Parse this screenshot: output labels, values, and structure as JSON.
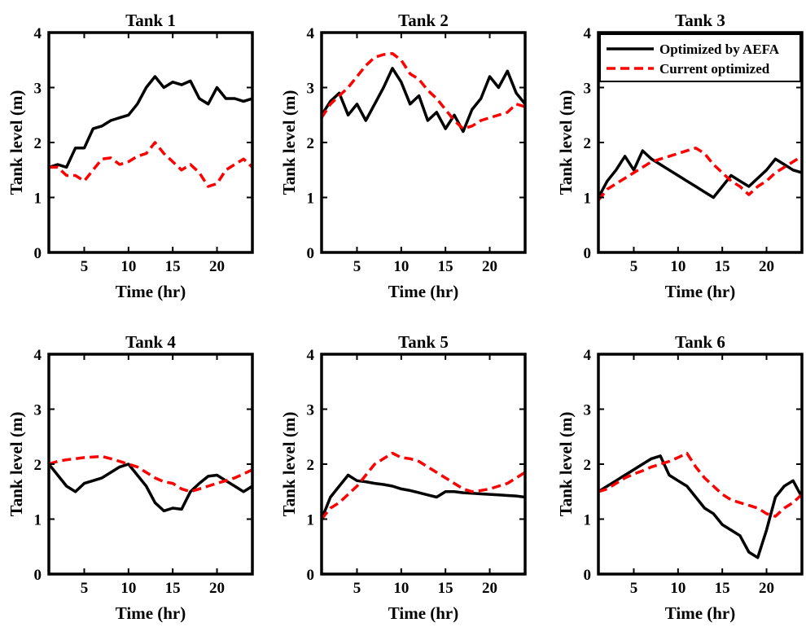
{
  "legend": {
    "location": "top-right of Tank 3",
    "entries": [
      {
        "label": "Optimized by AEFA",
        "color": "#000000",
        "style": "solid"
      },
      {
        "label": "Current optimized",
        "color": "#ff0000",
        "style": "dashed"
      }
    ]
  },
  "chart_data": [
    {
      "type": "line",
      "title": "Tank 1",
      "xlabel": "Time (hr)",
      "ylabel": "Tank level (m)",
      "xlim": [
        1,
        24
      ],
      "ylim": [
        0,
        4
      ],
      "xticks": [
        5,
        10,
        15,
        20
      ],
      "yticks": [
        0,
        1,
        2,
        3,
        4
      ],
      "series": [
        {
          "name": "Optimized by AEFA",
          "color": "#000000",
          "dashed": false,
          "x": [
            1,
            2,
            3,
            4,
            5,
            6,
            7,
            8,
            9,
            10,
            11,
            12,
            13,
            14,
            15,
            16,
            17,
            18,
            19,
            20,
            21,
            22,
            23,
            24
          ],
          "y": [
            1.55,
            1.6,
            1.55,
            1.9,
            1.9,
            2.25,
            2.3,
            2.4,
            2.45,
            2.5,
            2.7,
            3.0,
            3.2,
            3.0,
            3.1,
            3.05,
            3.12,
            2.8,
            2.7,
            3.0,
            2.8,
            2.8,
            2.75,
            2.8
          ]
        },
        {
          "name": "Current optimized",
          "color": "#ff0000",
          "dashed": true,
          "x": [
            1,
            2,
            3,
            4,
            5,
            6,
            7,
            8,
            9,
            10,
            11,
            12,
            13,
            14,
            15,
            16,
            17,
            18,
            19,
            20,
            21,
            22,
            23,
            24
          ],
          "y": [
            1.55,
            1.55,
            1.4,
            1.4,
            1.3,
            1.5,
            1.7,
            1.72,
            1.6,
            1.65,
            1.75,
            1.8,
            2.0,
            1.8,
            1.65,
            1.5,
            1.6,
            1.45,
            1.2,
            1.25,
            1.5,
            1.6,
            1.7,
            1.55
          ]
        }
      ]
    },
    {
      "type": "line",
      "title": "Tank 2",
      "xlabel": "Time (hr)",
      "ylabel": "Tank level (m)",
      "xlim": [
        1,
        24
      ],
      "ylim": [
        0,
        4
      ],
      "xticks": [
        5,
        10,
        15,
        20
      ],
      "yticks": [
        0,
        1,
        2,
        3,
        4
      ],
      "series": [
        {
          "name": "Optimized by AEFA",
          "color": "#000000",
          "dashed": false,
          "x": [
            1,
            2,
            3,
            4,
            5,
            6,
            7,
            8,
            9,
            10,
            11,
            12,
            13,
            14,
            15,
            16,
            17,
            18,
            19,
            20,
            21,
            22,
            23,
            24
          ],
          "y": [
            2.5,
            2.75,
            2.9,
            2.5,
            2.7,
            2.4,
            2.7,
            3.0,
            3.35,
            3.1,
            2.7,
            2.85,
            2.4,
            2.55,
            2.25,
            2.5,
            2.2,
            2.6,
            2.8,
            3.2,
            3.0,
            3.3,
            2.9,
            2.7
          ]
        },
        {
          "name": "Current optimized",
          "color": "#ff0000",
          "dashed": true,
          "x": [
            1,
            2,
            3,
            4,
            5,
            6,
            7,
            8,
            9,
            10,
            11,
            12,
            13,
            14,
            15,
            16,
            17,
            18,
            19,
            20,
            21,
            22,
            23,
            24
          ],
          "y": [
            2.45,
            2.7,
            2.85,
            3.0,
            3.2,
            3.4,
            3.55,
            3.6,
            3.62,
            3.5,
            3.25,
            3.15,
            2.95,
            2.8,
            2.6,
            2.4,
            2.25,
            2.3,
            2.4,
            2.45,
            2.5,
            2.55,
            2.7,
            2.65
          ]
        }
      ]
    },
    {
      "type": "line",
      "title": "Tank 3",
      "xlabel": "Time (hr)",
      "ylabel": "Tank level (m)",
      "xlim": [
        1,
        24
      ],
      "ylim": [
        0,
        4
      ],
      "xticks": [
        5,
        10,
        15,
        20
      ],
      "yticks": [
        0,
        1,
        2,
        3,
        4
      ],
      "series": [
        {
          "name": "Optimized by AEFA",
          "color": "#000000",
          "dashed": false,
          "x": [
            1,
            2,
            3,
            4,
            5,
            6,
            7,
            8,
            9,
            10,
            11,
            12,
            13,
            14,
            15,
            16,
            17,
            18,
            19,
            20,
            21,
            22,
            23,
            24
          ],
          "y": [
            1.0,
            1.3,
            1.5,
            1.75,
            1.5,
            1.85,
            1.7,
            1.6,
            1.5,
            1.4,
            1.3,
            1.2,
            1.1,
            1.0,
            1.2,
            1.4,
            1.3,
            1.2,
            1.35,
            1.5,
            1.7,
            1.6,
            1.5,
            1.45
          ]
        },
        {
          "name": "Current optimized",
          "color": "#ff0000",
          "dashed": true,
          "x": [
            1,
            2,
            3,
            4,
            5,
            6,
            7,
            8,
            9,
            10,
            11,
            12,
            13,
            14,
            15,
            16,
            17,
            18,
            19,
            20,
            21,
            22,
            23,
            24
          ],
          "y": [
            0.95,
            1.15,
            1.25,
            1.35,
            1.45,
            1.55,
            1.65,
            1.7,
            1.75,
            1.8,
            1.85,
            1.9,
            1.8,
            1.6,
            1.45,
            1.3,
            1.2,
            1.05,
            1.2,
            1.3,
            1.45,
            1.55,
            1.65,
            1.75
          ]
        }
      ]
    },
    {
      "type": "line",
      "title": "Tank 4",
      "xlabel": "Time (hr)",
      "ylabel": "Tank level (m)",
      "xlim": [
        1,
        24
      ],
      "ylim": [
        0,
        4
      ],
      "xticks": [
        5,
        10,
        15,
        20
      ],
      "yticks": [
        0,
        1,
        2,
        3,
        4
      ],
      "series": [
        {
          "name": "Optimized by AEFA",
          "color": "#000000",
          "dashed": false,
          "x": [
            1,
            2,
            3,
            4,
            5,
            6,
            7,
            8,
            9,
            10,
            11,
            12,
            13,
            14,
            15,
            16,
            17,
            18,
            19,
            20,
            21,
            22,
            23,
            24
          ],
          "y": [
            2.0,
            1.8,
            1.6,
            1.5,
            1.65,
            1.7,
            1.75,
            1.85,
            1.95,
            2.0,
            1.8,
            1.6,
            1.3,
            1.15,
            1.2,
            1.18,
            1.5,
            1.65,
            1.78,
            1.8,
            1.7,
            1.6,
            1.5,
            1.6
          ]
        },
        {
          "name": "Current optimized",
          "color": "#ff0000",
          "dashed": true,
          "x": [
            1,
            2,
            3,
            4,
            5,
            6,
            7,
            8,
            9,
            10,
            11,
            12,
            13,
            14,
            15,
            16,
            17,
            18,
            19,
            20,
            21,
            22,
            23,
            24
          ],
          "y": [
            2.0,
            2.05,
            2.08,
            2.1,
            2.12,
            2.13,
            2.14,
            2.1,
            2.05,
            2.0,
            1.95,
            1.85,
            1.75,
            1.68,
            1.65,
            1.55,
            1.5,
            1.55,
            1.6,
            1.65,
            1.7,
            1.75,
            1.82,
            1.9
          ]
        }
      ]
    },
    {
      "type": "line",
      "title": "Tank 5",
      "xlabel": "Time (hr)",
      "ylabel": "Tank level (m)",
      "xlim": [
        1,
        24
      ],
      "ylim": [
        0,
        4
      ],
      "xticks": [
        5,
        10,
        15,
        20
      ],
      "yticks": [
        0,
        1,
        2,
        3,
        4
      ],
      "series": [
        {
          "name": "Optimized by AEFA",
          "color": "#000000",
          "dashed": false,
          "x": [
            1,
            2,
            3,
            4,
            5,
            6,
            7,
            8,
            9,
            10,
            11,
            12,
            13,
            14,
            15,
            16,
            17,
            18,
            19,
            20,
            21,
            22,
            23,
            24
          ],
          "y": [
            1.0,
            1.4,
            1.6,
            1.8,
            1.7,
            1.68,
            1.65,
            1.63,
            1.6,
            1.55,
            1.52,
            1.48,
            1.44,
            1.4,
            1.5,
            1.5,
            1.48,
            1.47,
            1.46,
            1.45,
            1.44,
            1.43,
            1.42,
            1.4
          ]
        },
        {
          "name": "Current optimized",
          "color": "#ff0000",
          "dashed": true,
          "x": [
            1,
            2,
            3,
            4,
            5,
            6,
            7,
            8,
            9,
            10,
            11,
            12,
            13,
            14,
            15,
            16,
            17,
            18,
            19,
            20,
            21,
            22,
            23,
            24
          ],
          "y": [
            1.0,
            1.2,
            1.3,
            1.45,
            1.6,
            1.8,
            2.0,
            2.1,
            2.2,
            2.12,
            2.1,
            2.05,
            1.95,
            1.85,
            1.75,
            1.65,
            1.55,
            1.5,
            1.52,
            1.55,
            1.6,
            1.65,
            1.75,
            1.85
          ]
        }
      ]
    },
    {
      "type": "line",
      "title": "Tank 6",
      "xlabel": "Time (hr)",
      "ylabel": "Tank level (m)",
      "xlim": [
        1,
        24
      ],
      "ylim": [
        0,
        4
      ],
      "xticks": [
        5,
        10,
        15,
        20
      ],
      "yticks": [
        0,
        1,
        2,
        3,
        4
      ],
      "series": [
        {
          "name": "Optimized by AEFA",
          "color": "#000000",
          "dashed": false,
          "x": [
            1,
            2,
            3,
            4,
            5,
            6,
            7,
            8,
            9,
            10,
            11,
            12,
            13,
            14,
            15,
            16,
            17,
            18,
            19,
            20,
            21,
            22,
            23,
            24
          ],
          "y": [
            1.5,
            1.6,
            1.7,
            1.8,
            1.9,
            2.0,
            2.1,
            2.15,
            1.8,
            1.7,
            1.6,
            1.4,
            1.2,
            1.1,
            0.9,
            0.8,
            0.7,
            0.4,
            0.3,
            0.8,
            1.4,
            1.6,
            1.7,
            1.4
          ]
        },
        {
          "name": "Current optimized",
          "color": "#ff0000",
          "dashed": true,
          "x": [
            1,
            2,
            3,
            4,
            5,
            6,
            7,
            8,
            9,
            10,
            11,
            12,
            13,
            14,
            15,
            16,
            17,
            18,
            19,
            20,
            21,
            22,
            23,
            24
          ],
          "y": [
            1.5,
            1.55,
            1.65,
            1.75,
            1.82,
            1.88,
            1.95,
            2.0,
            2.05,
            2.12,
            2.2,
            1.95,
            1.75,
            1.6,
            1.45,
            1.35,
            1.3,
            1.25,
            1.2,
            1.1,
            1.05,
            1.2,
            1.3,
            1.45
          ]
        }
      ]
    }
  ]
}
